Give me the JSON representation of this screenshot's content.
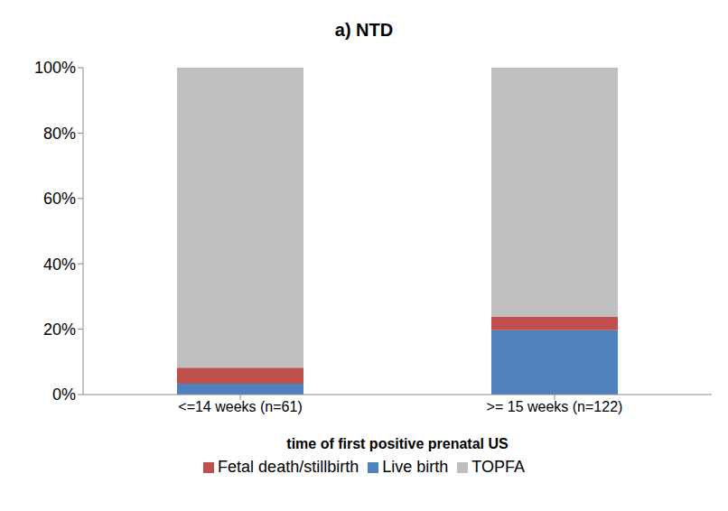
{
  "chart_data": {
    "type": "bar",
    "title": "a) NTD",
    "x_label": "time of first positive prenatal US",
    "categories": [
      "<=14 weeks (n=61)",
      ">= 15 weeks (n=122)"
    ],
    "series": [
      {
        "name": "Live birth",
        "color": "#4f81bd",
        "values": [
          3.3,
          19.7
        ]
      },
      {
        "name": "Fetal death/stillbirth",
        "color": "#c0504d",
        "values": [
          4.9,
          4.1
        ]
      },
      {
        "name": "TOPFA",
        "color": "#bfbfbf",
        "values": [
          91.8,
          76.2
        ]
      }
    ],
    "ylim": [
      0,
      100
    ],
    "yticks": [
      {
        "value": 0,
        "label": "0%"
      },
      {
        "value": 20,
        "label": "20%"
      },
      {
        "value": 40,
        "label": "40%"
      },
      {
        "value": 60,
        "label": "60%"
      },
      {
        "value": 80,
        "label": "80%"
      },
      {
        "value": 100,
        "label": "100%"
      }
    ],
    "stacked": true,
    "legend": "bottom",
    "grid": false
  }
}
